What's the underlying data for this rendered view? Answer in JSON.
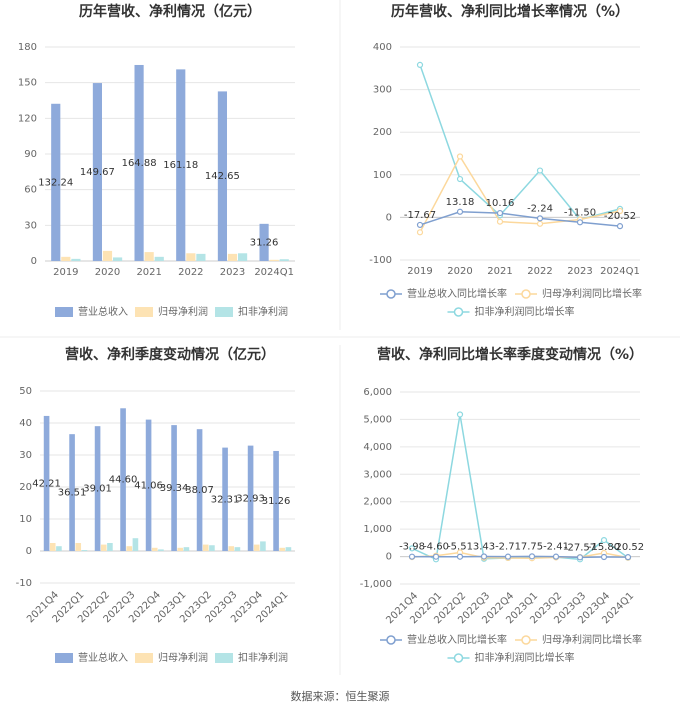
{
  "chart_data": [
    {
      "type": "bar",
      "title": "历年营收、净利情况（亿元）",
      "categories": [
        "2019",
        "2020",
        "2021",
        "2022",
        "2023",
        "2024Q1"
      ],
      "series": [
        {
          "name": "营业总收入",
          "color": "#8eaadb",
          "values": [
            132.24,
            149.67,
            164.88,
            161.18,
            142.65,
            31.26
          ],
          "data_labels": true
        },
        {
          "name": "归母净利润",
          "color": "#fde3b4",
          "values": [
            3.5,
            8.5,
            7.5,
            6.5,
            6.0,
            1.0
          ]
        },
        {
          "name": "扣非净利润",
          "color": "#b4e4e6",
          "values": [
            1.8,
            3.0,
            3.5,
            6.0,
            6.5,
            1.5
          ]
        }
      ],
      "ylim": [
        0,
        180
      ],
      "yticks": [
        0,
        30,
        60,
        90,
        120,
        150,
        180
      ],
      "grid": true,
      "legend": "bottom"
    },
    {
      "type": "line",
      "title": "历年营收、净利同比增长率情况（%）",
      "categories": [
        "2019",
        "2020",
        "2021",
        "2022",
        "2023",
        "2024Q1"
      ],
      "series": [
        {
          "name": "营业总收入同比增长率",
          "color": "#7f9fcf",
          "values": [
            -17.67,
            13.18,
            10.16,
            -2.24,
            -11.5,
            -20.52
          ],
          "value_labels": [
            "-17.67",
            "13.18",
            "10.16",
            "-2.24",
            "-11.50",
            "-20.52"
          ]
        },
        {
          "name": "归母净利润同比增长率",
          "color": "#fcd89c",
          "values": [
            -35,
            143,
            -10,
            -15,
            -5,
            15
          ]
        },
        {
          "name": "扣非净利润同比增长率",
          "color": "#8dd8e0",
          "values": [
            358,
            90,
            5,
            110,
            -5,
            20
          ]
        }
      ],
      "ylim": [
        -100,
        400
      ],
      "yticks": [
        -100,
        0,
        100,
        200,
        300,
        400
      ],
      "grid": true,
      "legend": "bottom"
    },
    {
      "type": "bar",
      "title": "营收、净利季度变动情况（亿元）",
      "categories": [
        "2021Q4",
        "2022Q1",
        "2022Q2",
        "2022Q3",
        "2022Q4",
        "2023Q1",
        "2023Q2",
        "2023Q3",
        "2023Q4",
        "2024Q1"
      ],
      "series": [
        {
          "name": "营业总收入",
          "color": "#8eaadb",
          "values": [
            42.21,
            36.51,
            39.01,
            44.6,
            41.06,
            39.34,
            38.07,
            32.31,
            32.93,
            31.26
          ],
          "value_labels": [
            "42.21",
            "36.51",
            "39.01",
            "44.60",
            "41.06",
            "39.34",
            "38.07",
            "32.31",
            "32.93",
            "31.26"
          ]
        },
        {
          "name": "归母净利润",
          "color": "#fde3b4",
          "values": [
            2.5,
            2.5,
            2.0,
            1.5,
            1.0,
            1.0,
            2.0,
            1.5,
            2.0,
            1.0
          ]
        },
        {
          "name": "扣非净利润",
          "color": "#b4e4e6",
          "values": [
            1.5,
            0.3,
            2.5,
            4.0,
            0.5,
            1.2,
            1.8,
            1.2,
            3.0,
            1.2
          ]
        }
      ],
      "ylim": [
        -10,
        50
      ],
      "yticks": [
        -10,
        0,
        10,
        20,
        30,
        40,
        50
      ],
      "grid": true,
      "legend": "bottom"
    },
    {
      "type": "line",
      "title": "营收、净利同比增长率季度变动情况（%）",
      "categories": [
        "2021Q4",
        "2022Q1",
        "2022Q2",
        "2022Q3",
        "2022Q4",
        "2023Q1",
        "2023Q2",
        "2023Q3",
        "2023Q4",
        "2024Q1"
      ],
      "series": [
        {
          "name": "营业总收入同比增长率",
          "color": "#7f9fcf",
          "values": [
            -3.98,
            -4.6,
            -5.51,
            3.43,
            -2.71,
            7.75,
            -2.41,
            -27.57,
            -15.8,
            -20.52
          ],
          "value_labels": [
            "-3.98",
            "-4.60",
            "-5.51",
            "3.43",
            "-2.71",
            "7.75",
            "-2.41",
            "-27.57",
            "-15.80",
            "-20.52"
          ]
        },
        {
          "name": "归母净利润同比增长率",
          "color": "#fcd89c",
          "values": [
            -20,
            30,
            150,
            -40,
            -50,
            -60,
            -30,
            -20,
            130,
            -40
          ]
        },
        {
          "name": "扣非净利润同比增长率",
          "color": "#8dd8e0",
          "values": [
            300,
            -100,
            5180,
            -80,
            -50,
            -40,
            -20,
            -100,
            600,
            -40
          ]
        }
      ],
      "ylim": [
        -1000,
        6000
      ],
      "yticks": [
        {
          "value": -1000,
          "label": "-1,000"
        },
        0,
        {
          "value": 1000,
          "label": "1,000"
        },
        {
          "value": 2000,
          "label": "2,000"
        },
        {
          "value": 3000,
          "label": "3,000"
        },
        {
          "value": 4000,
          "label": "4,000"
        },
        {
          "value": 5000,
          "label": "5,000"
        },
        {
          "value": 6000,
          "label": "6,000"
        }
      ],
      "grid": true,
      "legend": "bottom"
    }
  ],
  "source": "数据来源：恒生聚源"
}
